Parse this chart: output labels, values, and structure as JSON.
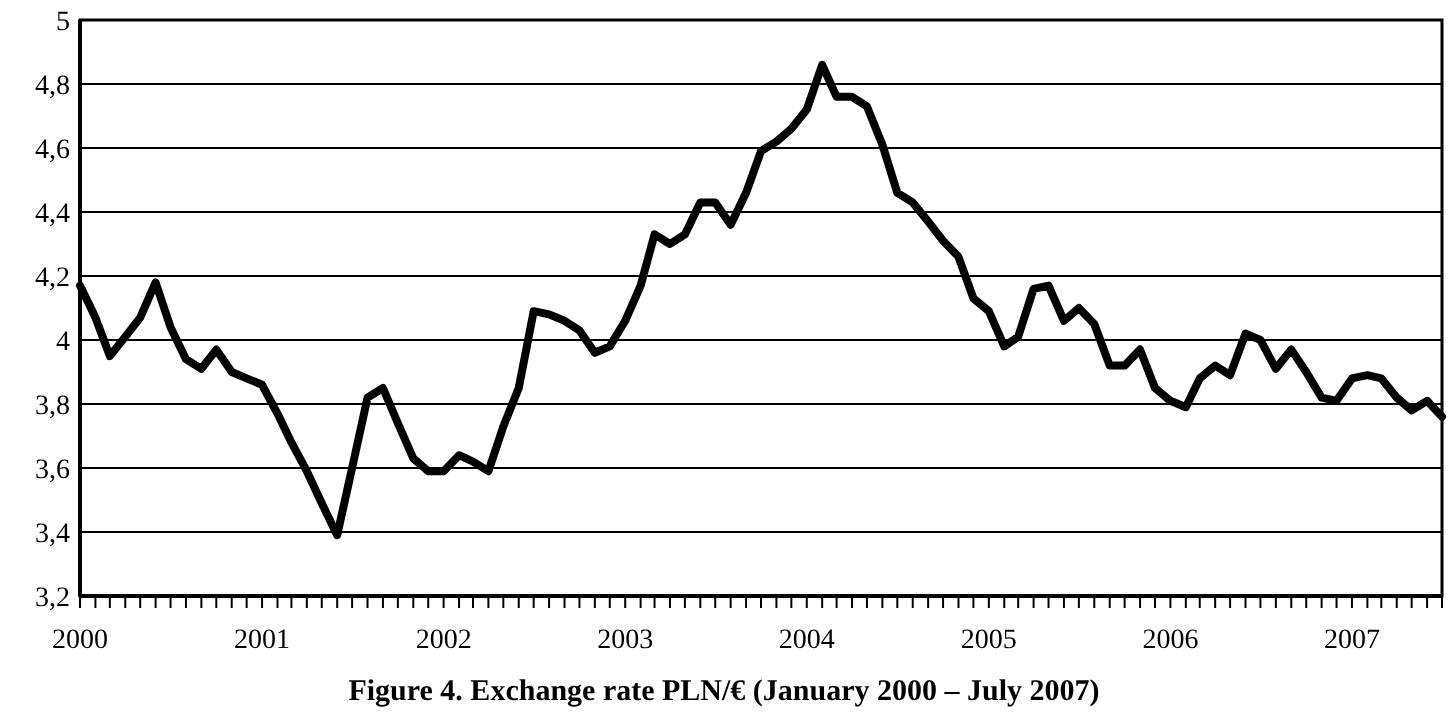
{
  "chart_data": {
    "type": "line",
    "title": "Figure 4. Exchange rate PLN/€ (January 2000 – July 2007)",
    "x": [
      "2000-01",
      "2000-02",
      "2000-03",
      "2000-04",
      "2000-05",
      "2000-06",
      "2000-07",
      "2000-08",
      "2000-09",
      "2000-10",
      "2000-11",
      "2000-12",
      "2001-01",
      "2001-02",
      "2001-03",
      "2001-04",
      "2001-05",
      "2001-06",
      "2001-07",
      "2001-08",
      "2001-09",
      "2001-10",
      "2001-11",
      "2001-12",
      "2002-01",
      "2002-02",
      "2002-03",
      "2002-04",
      "2002-05",
      "2002-06",
      "2002-07",
      "2002-08",
      "2002-09",
      "2002-10",
      "2002-11",
      "2002-12",
      "2003-01",
      "2003-02",
      "2003-03",
      "2003-04",
      "2003-05",
      "2003-06",
      "2003-07",
      "2003-08",
      "2003-09",
      "2003-10",
      "2003-11",
      "2003-12",
      "2004-01",
      "2004-02",
      "2004-03",
      "2004-04",
      "2004-05",
      "2004-06",
      "2004-07",
      "2004-08",
      "2004-09",
      "2004-10",
      "2004-11",
      "2004-12",
      "2005-01",
      "2005-02",
      "2005-03",
      "2005-04",
      "2005-05",
      "2005-06",
      "2005-07",
      "2005-08",
      "2005-09",
      "2005-10",
      "2005-11",
      "2005-12",
      "2006-01",
      "2006-02",
      "2006-03",
      "2006-04",
      "2006-05",
      "2006-06",
      "2006-07",
      "2006-08",
      "2006-09",
      "2006-10",
      "2006-11",
      "2006-12",
      "2007-01",
      "2007-02",
      "2007-03",
      "2007-04",
      "2007-05",
      "2007-06",
      "2007-07"
    ],
    "series": [
      {
        "color": "#000000",
        "values": [
          4.17,
          4.07,
          3.95,
          4.01,
          4.07,
          4.18,
          4.04,
          3.94,
          3.91,
          3.97,
          3.9,
          3.88,
          3.86,
          3.77,
          3.68,
          3.59,
          3.49,
          3.39,
          3.6,
          3.82,
          3.85,
          3.74,
          3.63,
          3.59,
          3.59,
          3.64,
          3.62,
          3.59,
          3.73,
          3.85,
          4.09,
          4.08,
          4.06,
          4.03,
          3.96,
          3.98,
          4.06,
          4.17,
          4.33,
          4.3,
          4.33,
          4.43,
          4.43,
          4.36,
          4.46,
          4.59,
          4.62,
          4.66,
          4.72,
          4.86,
          4.76,
          4.76,
          4.73,
          4.61,
          4.46,
          4.43,
          4.37,
          4.31,
          4.26,
          4.13,
          4.09,
          3.98,
          4.01,
          4.16,
          4.17,
          4.06,
          4.1,
          4.05,
          3.92,
          3.92,
          3.97,
          3.85,
          3.81,
          3.79,
          3.88,
          3.92,
          3.89,
          4.02,
          4.0,
          3.91,
          3.97,
          3.9,
          3.82,
          3.81,
          3.88,
          3.89,
          3.88,
          3.82,
          3.78,
          3.81,
          3.76
        ]
      }
    ],
    "xlim": [
      "2000-01",
      "2007-07"
    ],
    "xticks": [
      {
        "value": "2000-01",
        "label": "2000"
      },
      {
        "value": "2000-02",
        "label": null
      },
      {
        "value": "2000-03",
        "label": null
      },
      {
        "value": "2000-04",
        "label": null
      },
      {
        "value": "2000-05",
        "label": null
      },
      {
        "value": "2000-06",
        "label": null
      },
      {
        "value": "2000-07",
        "label": null
      },
      {
        "value": "2000-08",
        "label": null
      },
      {
        "value": "2000-09",
        "label": null
      },
      {
        "value": "2000-10",
        "label": null
      },
      {
        "value": "2000-11",
        "label": null
      },
      {
        "value": "2000-12",
        "label": null
      },
      {
        "value": "2001-01",
        "label": "2001"
      },
      {
        "value": "2001-02",
        "label": null
      },
      {
        "value": "2001-03",
        "label": null
      },
      {
        "value": "2001-04",
        "label": null
      },
      {
        "value": "2001-05",
        "label": null
      },
      {
        "value": "2001-06",
        "label": null
      },
      {
        "value": "2001-07",
        "label": null
      },
      {
        "value": "2001-08",
        "label": null
      },
      {
        "value": "2001-09",
        "label": null
      },
      {
        "value": "2001-10",
        "label": null
      },
      {
        "value": "2001-11",
        "label": null
      },
      {
        "value": "2001-12",
        "label": null
      },
      {
        "value": "2002-01",
        "label": "2002"
      },
      {
        "value": "2002-02",
        "label": null
      },
      {
        "value": "2002-03",
        "label": null
      },
      {
        "value": "2002-04",
        "label": null
      },
      {
        "value": "2002-05",
        "label": null
      },
      {
        "value": "2002-06",
        "label": null
      },
      {
        "value": "2002-07",
        "label": null
      },
      {
        "value": "2002-08",
        "label": null
      },
      {
        "value": "2002-09",
        "label": null
      },
      {
        "value": "2002-10",
        "label": null
      },
      {
        "value": "2002-11",
        "label": null
      },
      {
        "value": "2002-12",
        "label": null
      },
      {
        "value": "2003-01",
        "label": "2003"
      },
      {
        "value": "2003-02",
        "label": null
      },
      {
        "value": "2003-03",
        "label": null
      },
      {
        "value": "2003-04",
        "label": null
      },
      {
        "value": "2003-05",
        "label": null
      },
      {
        "value": "2003-06",
        "label": null
      },
      {
        "value": "2003-07",
        "label": null
      },
      {
        "value": "2003-08",
        "label": null
      },
      {
        "value": "2003-09",
        "label": null
      },
      {
        "value": "2003-10",
        "label": null
      },
      {
        "value": "2003-11",
        "label": null
      },
      {
        "value": "2003-12",
        "label": null
      },
      {
        "value": "2004-01",
        "label": "2004"
      },
      {
        "value": "2004-02",
        "label": null
      },
      {
        "value": "2004-03",
        "label": null
      },
      {
        "value": "2004-04",
        "label": null
      },
      {
        "value": "2004-05",
        "label": null
      },
      {
        "value": "2004-06",
        "label": null
      },
      {
        "value": "2004-07",
        "label": null
      },
      {
        "value": "2004-08",
        "label": null
      },
      {
        "value": "2004-09",
        "label": null
      },
      {
        "value": "2004-10",
        "label": null
      },
      {
        "value": "2004-11",
        "label": null
      },
      {
        "value": "2004-12",
        "label": null
      },
      {
        "value": "2005-01",
        "label": "2005"
      },
      {
        "value": "2005-02",
        "label": null
      },
      {
        "value": "2005-03",
        "label": null
      },
      {
        "value": "2005-04",
        "label": null
      },
      {
        "value": "2005-05",
        "label": null
      },
      {
        "value": "2005-06",
        "label": null
      },
      {
        "value": "2005-07",
        "label": null
      },
      {
        "value": "2005-08",
        "label": null
      },
      {
        "value": "2005-09",
        "label": null
      },
      {
        "value": "2005-10",
        "label": null
      },
      {
        "value": "2005-11",
        "label": null
      },
      {
        "value": "2005-12",
        "label": null
      },
      {
        "value": "2006-01",
        "label": "2006"
      },
      {
        "value": "2006-02",
        "label": null
      },
      {
        "value": "2006-03",
        "label": null
      },
      {
        "value": "2006-04",
        "label": null
      },
      {
        "value": "2006-05",
        "label": null
      },
      {
        "value": "2006-06",
        "label": null
      },
      {
        "value": "2006-07",
        "label": null
      },
      {
        "value": "2006-08",
        "label": null
      },
      {
        "value": "2006-09",
        "label": null
      },
      {
        "value": "2006-10",
        "label": null
      },
      {
        "value": "2006-11",
        "label": null
      },
      {
        "value": "2006-12",
        "label": null
      },
      {
        "value": "2007-01",
        "label": "2007"
      },
      {
        "value": "2007-02",
        "label": null
      },
      {
        "value": "2007-03",
        "label": null
      },
      {
        "value": "2007-04",
        "label": null
      },
      {
        "value": "2007-05",
        "label": null
      },
      {
        "value": "2007-06",
        "label": null
      },
      {
        "value": "2007-07",
        "label": null
      }
    ],
    "ylim": [
      3.2,
      5
    ],
    "yticks": [
      {
        "value": 3.2,
        "label": "3,2"
      },
      {
        "value": 3.4,
        "label": "3,4"
      },
      {
        "value": 3.6,
        "label": "3,6"
      },
      {
        "value": 3.8,
        "label": "3,8"
      },
      4,
      {
        "value": 4.2,
        "label": "4,2"
      },
      {
        "value": 4.4,
        "label": "4,4"
      },
      {
        "value": 4.6,
        "label": "4,6"
      },
      {
        "value": 4.8,
        "label": "4,8"
      },
      5
    ],
    "grid": "y",
    "line_style": "solid",
    "marker": "none"
  }
}
